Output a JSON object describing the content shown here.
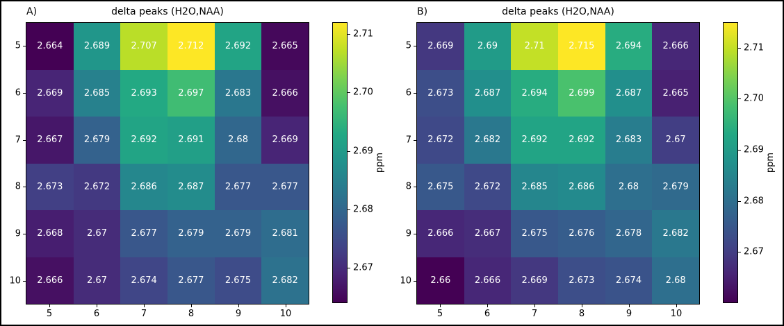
{
  "figure": {
    "background": "#ffffff",
    "border_color": "#000000",
    "cell_text_color": "#ffffff"
  },
  "chart_data": [
    {
      "type": "heatmap",
      "panel_label": "A)",
      "title": "delta peaks (H2O,NAA)",
      "colormap": "viridis",
      "x_ticks": [
        "5",
        "6",
        "7",
        "8",
        "9",
        "10"
      ],
      "y_ticks": [
        "5",
        "6",
        "7",
        "8",
        "9",
        "10"
      ],
      "xlabel": "",
      "ylabel": "",
      "values": [
        [
          "2.664",
          "2.689",
          "2.707",
          "2.712",
          "2.692",
          "2.665"
        ],
        [
          "2.669",
          "2.685",
          "2.693",
          "2.697",
          "2.683",
          "2.666"
        ],
        [
          "2.667",
          "2.679",
          "2.692",
          "2.691",
          "2.68",
          "2.669"
        ],
        [
          "2.673",
          "2.672",
          "2.686",
          "2.687",
          "2.677",
          "2.677"
        ],
        [
          "2.668",
          "2.67",
          "2.677",
          "2.679",
          "2.679",
          "2.681"
        ],
        [
          "2.666",
          "2.67",
          "2.674",
          "2.677",
          "2.675",
          "2.682"
        ]
      ],
      "vmin": 2.664,
      "vmax": 2.712,
      "colorbar": {
        "label": "ppm",
        "ticks": [
          "2.71",
          "2.70",
          "2.69",
          "2.68",
          "2.67"
        ]
      }
    },
    {
      "type": "heatmap",
      "panel_label": "B)",
      "title": "delta peaks (H2O,NAA)",
      "colormap": "viridis",
      "x_ticks": [
        "5",
        "6",
        "7",
        "8",
        "9",
        "10"
      ],
      "y_ticks": [
        "5",
        "6",
        "7",
        "8",
        "9",
        "10"
      ],
      "xlabel": "",
      "ylabel": "",
      "values": [
        [
          "2.669",
          "2.69",
          "2.71",
          "2.715",
          "2.694",
          "2.666"
        ],
        [
          "2.673",
          "2.687",
          "2.694",
          "2.699",
          "2.687",
          "2.665"
        ],
        [
          "2.672",
          "2.682",
          "2.692",
          "2.692",
          "2.683",
          "2.67"
        ],
        [
          "2.675",
          "2.672",
          "2.685",
          "2.686",
          "2.68",
          "2.679"
        ],
        [
          "2.666",
          "2.667",
          "2.675",
          "2.676",
          "2.678",
          "2.682"
        ],
        [
          "2.66",
          "2.666",
          "2.669",
          "2.673",
          "2.674",
          "2.68"
        ]
      ],
      "vmin": 2.66,
      "vmax": 2.715,
      "colorbar": {
        "label": "ppm",
        "ticks": [
          "2.71",
          "2.70",
          "2.69",
          "2.68",
          "2.67"
        ]
      }
    }
  ]
}
